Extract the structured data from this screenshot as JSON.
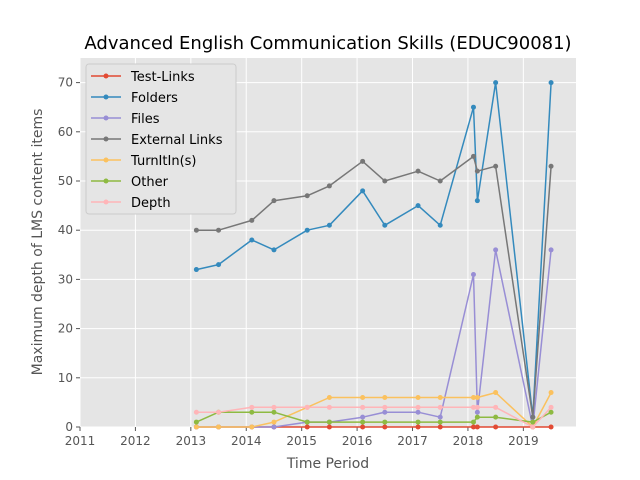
{
  "chart_data": {
    "type": "line",
    "title": "Advanced English Communication Skills (EDUC90081)",
    "xlabel": "Time Period",
    "ylabel": "Maximum depth of LMS content items",
    "xlim": [
      2011.0,
      2019.95
    ],
    "ylim": [
      0,
      75
    ],
    "xticks": [
      2011,
      2012,
      2013,
      2014,
      2015,
      2016,
      2017,
      2018,
      2019
    ],
    "yticks": [
      0,
      10,
      20,
      30,
      40,
      50,
      60,
      70
    ],
    "grid": true,
    "legend_position": "top-left",
    "x": [
      2013.1,
      2013.5,
      2014.1,
      2014.5,
      2015.1,
      2015.5,
      2016.1,
      2016.5,
      2017.1,
      2017.5,
      2018.1,
      2018.17,
      2018.5,
      2019.17,
      2019.5
    ],
    "series": [
      {
        "name": "Test-Links",
        "color": "#e24a33",
        "values": [
          0,
          0,
          0,
          0,
          0,
          0,
          0,
          0,
          0,
          0,
          0,
          0,
          0,
          0,
          0
        ]
      },
      {
        "name": "Folders",
        "color": "#348abd",
        "values": [
          32,
          33,
          38,
          36,
          40,
          41,
          48,
          41,
          45,
          41,
          65,
          46,
          70,
          2,
          70
        ]
      },
      {
        "name": "Files",
        "color": "#988ed5",
        "values": [
          0,
          0,
          0,
          0,
          1,
          1,
          2,
          3,
          3,
          2,
          31,
          3,
          36,
          0,
          36
        ]
      },
      {
        "name": "External Links",
        "color": "#777777",
        "values": [
          40,
          40,
          42,
          46,
          47,
          49,
          54,
          50,
          52,
          50,
          55,
          52,
          53,
          2,
          53
        ]
      },
      {
        "name": "TurnItIn(s)",
        "color": "#fbc15e",
        "values": [
          0,
          0,
          0,
          1,
          4,
          6,
          6,
          6,
          6,
          6,
          6,
          6,
          7,
          0,
          7
        ]
      },
      {
        "name": "Other",
        "color": "#8eba42",
        "values": [
          1,
          3,
          3,
          3,
          1,
          1,
          1,
          1,
          1,
          1,
          1,
          2,
          2,
          1,
          3
        ]
      },
      {
        "name": "Depth",
        "color": "#ffb5b8",
        "values": [
          3,
          3,
          4,
          4,
          4,
          4,
          4,
          4,
          4,
          4,
          4,
          4,
          4,
          0,
          4
        ]
      }
    ]
  }
}
